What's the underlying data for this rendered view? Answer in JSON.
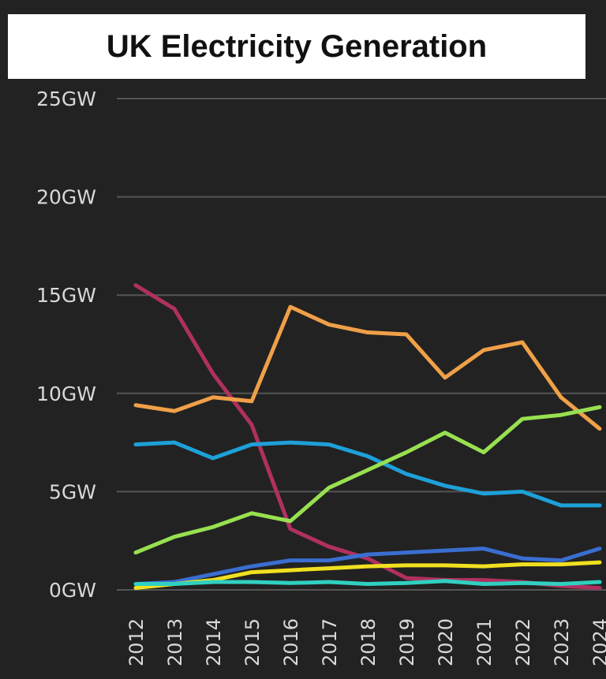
{
  "chart_data": {
    "type": "line",
    "title": "UK Electricity Generation",
    "xlabel": "",
    "ylabel": "",
    "categories": [
      "2012",
      "2013",
      "2014",
      "2015",
      "2016",
      "2017",
      "2018",
      "2019",
      "2020",
      "2021",
      "2022",
      "2023",
      "2024"
    ],
    "yticks": [
      "0GW",
      "5GW",
      "10GW",
      "15GW",
      "20GW",
      "25GW"
    ],
    "ylim": [
      0,
      25
    ],
    "grid": true,
    "legend": "none",
    "series": [
      {
        "color": "#b03060",
        "values": [
          15.5,
          14.3,
          11.0,
          8.4,
          3.1,
          2.2,
          1.6,
          0.6,
          0.5,
          0.5,
          0.4,
          0.2,
          0.1
        ]
      },
      {
        "color": "#f0a048",
        "values": [
          9.4,
          9.1,
          9.8,
          9.6,
          14.4,
          13.5,
          13.1,
          13.0,
          10.8,
          12.2,
          12.6,
          9.8,
          8.2
        ]
      },
      {
        "color": "#1ea0d8",
        "values": [
          7.4,
          7.5,
          6.7,
          7.4,
          7.5,
          7.4,
          6.8,
          5.9,
          5.3,
          4.9,
          5.0,
          4.3,
          4.3
        ]
      },
      {
        "color": "#98e050",
        "values": [
          1.9,
          2.7,
          3.2,
          3.9,
          3.5,
          5.2,
          6.1,
          7.0,
          8.0,
          7.0,
          8.7,
          8.9,
          9.3
        ]
      },
      {
        "color": "#3a6ed0",
        "values": [
          0.3,
          0.4,
          0.8,
          1.2,
          1.5,
          1.5,
          1.8,
          1.9,
          2.0,
          2.1,
          1.6,
          1.5,
          2.1
        ]
      },
      {
        "color": "#f0e020",
        "values": [
          0.1,
          0.3,
          0.5,
          0.9,
          1.0,
          1.1,
          1.2,
          1.25,
          1.25,
          1.2,
          1.3,
          1.3,
          1.4
        ]
      },
      {
        "color": "#30d0c0",
        "values": [
          0.3,
          0.3,
          0.4,
          0.4,
          0.35,
          0.4,
          0.3,
          0.35,
          0.45,
          0.3,
          0.35,
          0.3,
          0.4
        ]
      }
    ]
  }
}
